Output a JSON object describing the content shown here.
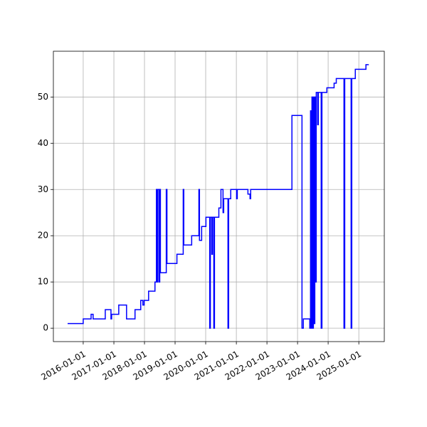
{
  "chart_data": {
    "type": "line",
    "grid": true,
    "color": "#0000ff",
    "x": [
      "2015-06-29",
      "2016-01-01",
      "2016-01-01",
      "2016-04-04",
      "2016-04-04",
      "2016-04-28",
      "2016-04-28",
      "2016-09-20",
      "2016-09-20",
      "2016-11-27",
      "2016-11-27",
      "2016-12-05",
      "2016-12-05",
      "2017-02-28",
      "2017-02-28",
      "2017-06-01",
      "2017-06-01",
      "2017-09-10",
      "2017-09-10",
      "2017-11-17",
      "2017-11-17",
      "2017-12-13",
      "2017-12-13",
      "2017-12-28",
      "2017-12-28",
      "2018-02-19",
      "2018-02-19",
      "2018-05-06",
      "2018-05-06",
      "2018-05-23",
      "2018-05-23",
      "2018-05-31",
      "2018-05-31",
      "2018-06-08",
      "2018-06-08",
      "2018-06-24",
      "2018-06-24",
      "2018-07-02",
      "2018-07-02",
      "2018-07-10",
      "2018-07-10",
      "2018-09-18",
      "2018-09-18",
      "2018-09-26",
      "2018-09-26",
      "2019-01-23",
      "2019-01-23",
      "2019-04-08",
      "2019-04-08",
      "2019-04-15",
      "2019-04-15",
      "2019-07-18",
      "2019-07-18",
      "2019-10-12",
      "2019-10-12",
      "2019-10-19",
      "2019-10-19",
      "2019-11-14",
      "2019-11-14",
      "2020-01-04",
      "2020-01-04",
      "2020-02-18",
      "2020-02-18",
      "2020-02-26",
      "2020-02-26",
      "2020-03-14",
      "2020-03-14",
      "2020-03-22",
      "2020-03-22",
      "2020-04-07",
      "2020-04-07",
      "2020-04-15",
      "2020-04-15",
      "2020-06-06",
      "2020-06-06",
      "2020-07-01",
      "2020-07-01",
      "2020-07-26",
      "2020-07-26",
      "2020-08-03",
      "2020-08-03",
      "2020-09-23",
      "2020-09-23",
      "2020-10-01",
      "2020-10-01",
      "2020-10-26",
      "2020-10-26",
      "2021-01-04",
      "2021-01-04",
      "2021-01-12",
      "2021-01-12",
      "2021-05-19",
      "2021-05-19",
      "2021-06-13",
      "2021-06-13",
      "2021-06-21",
      "2021-06-21",
      "2022-10-26",
      "2022-10-26",
      "2023-02-23",
      "2023-02-23",
      "2023-03-11",
      "2023-03-11",
      "2023-05-27",
      "2023-05-27",
      "2023-06-05",
      "2023-06-05",
      "2023-06-13",
      "2023-06-13",
      "2023-06-22",
      "2023-06-22",
      "2023-06-30",
      "2023-06-30",
      "2023-07-09",
      "2023-07-09",
      "2023-07-17",
      "2023-07-17",
      "2023-07-26",
      "2023-07-26",
      "2023-08-03",
      "2023-08-03",
      "2023-08-12",
      "2023-08-12",
      "2023-08-29",
      "2023-08-29",
      "2023-09-06",
      "2023-09-06",
      "2023-10-10",
      "2023-10-10",
      "2023-10-19",
      "2023-10-19",
      "2023-12-17",
      "2023-12-17",
      "2024-03-12",
      "2024-03-12",
      "2024-04-07",
      "2024-04-07",
      "2024-07-08",
      "2024-07-08",
      "2024-07-17",
      "2024-07-17",
      "2024-10-01",
      "2024-10-01",
      "2024-10-09",
      "2024-10-09",
      "2024-11-20",
      "2024-11-20",
      "2025-03-27",
      "2025-03-27",
      "2025-04-30"
    ],
    "y": [
      1,
      1,
      2,
      2,
      3,
      3,
      2,
      2,
      4,
      4,
      2,
      2,
      3,
      3,
      5,
      5,
      2,
      2,
      4,
      4,
      6,
      6,
      5,
      5,
      6,
      6,
      8,
      8,
      10,
      10,
      30,
      30,
      10,
      10,
      30,
      30,
      10,
      10,
      30,
      30,
      12,
      12,
      30,
      30,
      14,
      14,
      16,
      16,
      30,
      30,
      18,
      18,
      20,
      20,
      30,
      30,
      19,
      19,
      22,
      22,
      24,
      24,
      0,
      0,
      24,
      24,
      16,
      16,
      24,
      24,
      0,
      0,
      24,
      24,
      26,
      26,
      30,
      30,
      25,
      25,
      28,
      28,
      0,
      0,
      28,
      28,
      30,
      30,
      28,
      28,
      30,
      30,
      29,
      29,
      28,
      28,
      30,
      30,
      46,
      46,
      0,
      0,
      2,
      2,
      0,
      0,
      47,
      47,
      0,
      0,
      50,
      50,
      0,
      0,
      50,
      50,
      1,
      1,
      50,
      50,
      10,
      10,
      51,
      51,
      44,
      44,
      51,
      51,
      0,
      0,
      51,
      51,
      52,
      52,
      53,
      53,
      54,
      54,
      0,
      0,
      54,
      54,
      0,
      0,
      54,
      54,
      56,
      56,
      57,
      57
    ],
    "xlim": [
      "2015-01-10",
      "2025-11-01"
    ],
    "xticks": [
      "2016-01-01",
      "2017-01-01",
      "2018-01-01",
      "2019-01-01",
      "2020-01-01",
      "2021-01-01",
      "2022-01-01",
      "2023-01-01",
      "2024-01-01",
      "2025-01-01"
    ],
    "ylim": [
      -2.9,
      59.9
    ],
    "yticks": [
      0,
      10,
      20,
      30,
      40,
      50
    ]
  }
}
